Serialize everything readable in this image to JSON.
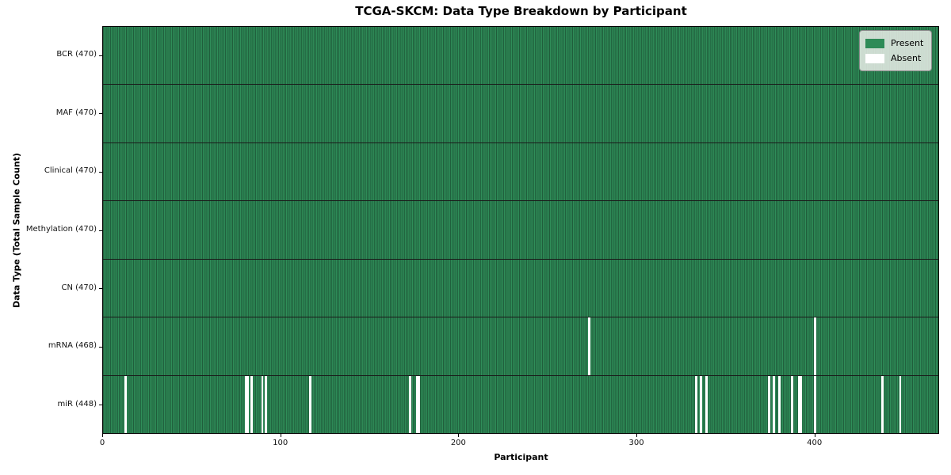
{
  "title": "TCGA-SKCM: Data Type Breakdown by Participant",
  "xlabel": "Participant",
  "ylabel": "Data Type (Total Sample Count)",
  "legend": {
    "present_label": "Present",
    "absent_label": "Absent"
  },
  "colors": {
    "present": "#2e8b57",
    "present_edge": "#1e5838",
    "absent": "#ffffff",
    "row_divider": "#1a1a1a",
    "plot_border": "#000000",
    "legend_bg": "#eaede9",
    "legend_border": "#8c8c8c"
  },
  "chart_data": {
    "type": "heatmap",
    "title": "TCGA-SKCM: Data Type Breakdown by Participant",
    "xlabel": "Participant",
    "ylabel": "Data Type (Total Sample Count)",
    "legend_position": "upper right",
    "grid": false,
    "n_participants": 470,
    "x_ticks": [
      0,
      100,
      200,
      300,
      400
    ],
    "xlim": [
      0,
      470
    ],
    "value_encoding": {
      "present": 1,
      "absent": 0
    },
    "rows": [
      {
        "name": "BCR",
        "label": "BCR (470)",
        "total": 470,
        "absent_participants": []
      },
      {
        "name": "MAF",
        "label": "MAF (470)",
        "total": 470,
        "absent_participants": []
      },
      {
        "name": "Clinical",
        "label": "Clinical (470)",
        "total": 470,
        "absent_participants": []
      },
      {
        "name": "Methylation",
        "label": "Methylation (470)",
        "total": 470,
        "absent_participants": []
      },
      {
        "name": "CN",
        "label": "CN (470)",
        "total": 470,
        "absent_participants": []
      },
      {
        "name": "mRNA",
        "label": "mRNA (468)",
        "total": 468,
        "absent_participants": [
          273,
          400
        ]
      },
      {
        "name": "miR",
        "label": "miR (448)",
        "total": 448,
        "absent_participants": [
          12,
          80,
          81,
          83,
          89,
          91,
          116,
          172,
          176,
          177,
          333,
          336,
          339,
          374,
          377,
          380,
          387,
          391,
          392,
          400,
          438,
          448
        ]
      }
    ],
    "legend_entries": [
      {
        "label": "Present",
        "color": "#2e8b57"
      },
      {
        "label": "Absent",
        "color": "#ffffff"
      }
    ]
  }
}
